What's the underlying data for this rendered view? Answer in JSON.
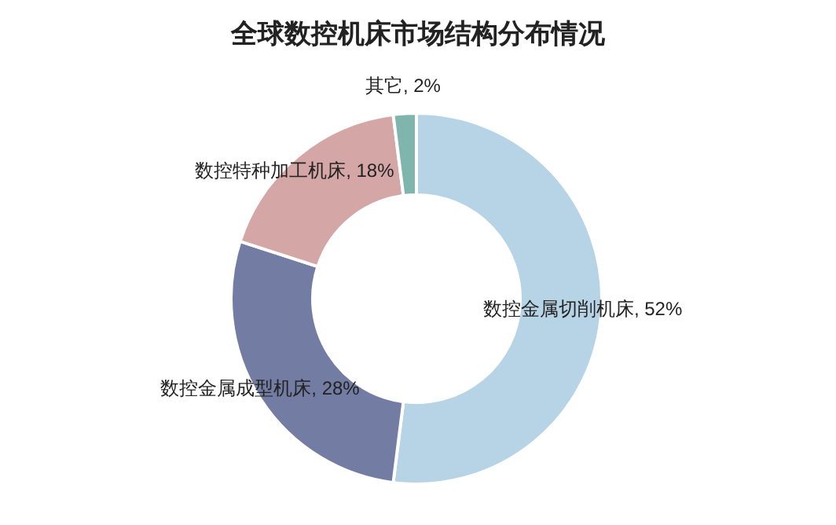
{
  "chart_data": {
    "type": "donut",
    "title": "全球数控机床市场结构分布情况",
    "categories": [
      "数控金属切削机床",
      "数控金属成型机床",
      "数控特种加工机床",
      "其它"
    ],
    "values": [
      52,
      28,
      18,
      2
    ],
    "colors": [
      "#b7d4e6",
      "#737ca2",
      "#d4a6a6",
      "#80b5ae"
    ],
    "value_labels": [
      ", 52%",
      ", 28%",
      ", 18%",
      ", 2%"
    ],
    "legend": false
  }
}
